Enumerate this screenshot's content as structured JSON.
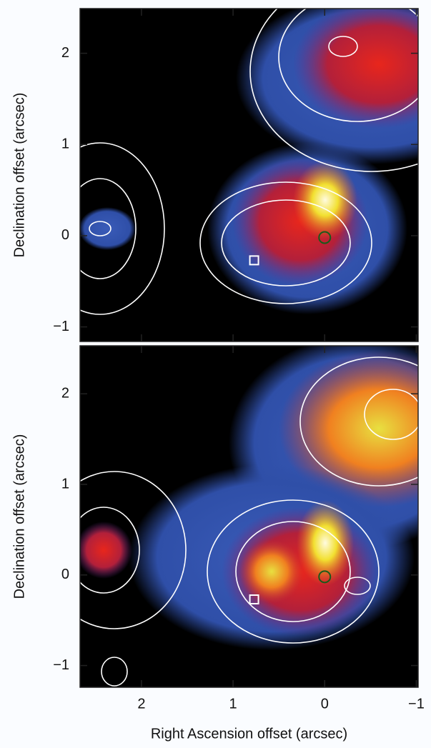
{
  "chart_data": [
    {
      "type": "image",
      "ylabel": "Declination offset (arcsec)",
      "xlim": [
        2.67,
        -1.02
      ],
      "xticks": [
        2,
        1,
        0,
        {
          "value": -1,
          "label": "−1"
        }
      ],
      "xticklabels": false,
      "ylim": [
        -1.16,
        2.49
      ],
      "yticks": [
        {
          "value": -1,
          "label": "−1"
        },
        0,
        1,
        2
      ],
      "markers": [
        {
          "shape": "square",
          "x": 0.77,
          "y": -0.27
        },
        {
          "shape": "circle",
          "x": 0,
          "y": -0.02
        }
      ]
    },
    {
      "type": "image",
      "ylabel": "Declination offset (arcsec)",
      "xlabel": "Right Ascension offset (arcsec)",
      "xlim": [
        2.67,
        -1.02
      ],
      "xticks": [
        2,
        1,
        0,
        {
          "value": -1,
          "label": "−1"
        }
      ],
      "xticklabels": true,
      "ylim": [
        -1.24,
        2.53
      ],
      "yticks": [
        {
          "value": -1,
          "label": "−1"
        },
        0,
        1,
        2
      ],
      "markers": [
        {
          "shape": "square",
          "x": 0.77,
          "y": -0.27
        },
        {
          "shape": "circle",
          "x": 0,
          "y": -0.02
        }
      ]
    }
  ]
}
